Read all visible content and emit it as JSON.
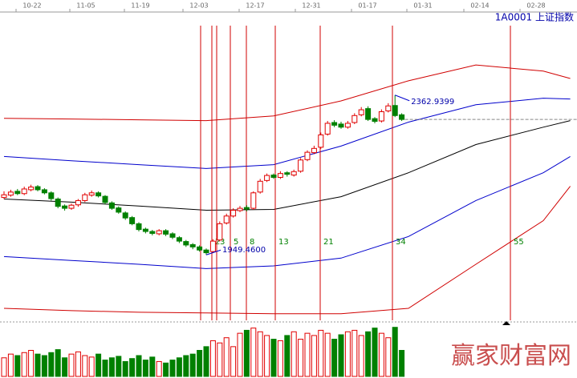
{
  "chart_data": {
    "type": "candlestick",
    "title": "1A0001 上证指数",
    "date_labels": [
      "10-22",
      "11-05",
      "11-19",
      "12-03",
      "12-17",
      "12-31",
      "01-17",
      "01-31",
      "02-14",
      "02-28"
    ],
    "ylim": [
      1780,
      2578
    ],
    "open": [
      2098,
      2104,
      2114,
      2108,
      2118,
      2126,
      2118,
      2110,
      2094,
      2076,
      2070,
      2079,
      2090,
      2104,
      2110,
      2101,
      2084,
      2071,
      2058,
      2046,
      2030,
      2016,
      2010,
      2004,
      2012,
      2004,
      1994,
      1984,
      1976,
      1970,
      1962,
      1958,
      1988,
      2032,
      2050,
      2064,
      2072,
      2070,
      2112,
      2142,
      2156,
      2150,
      2162,
      2156,
      2166,
      2196,
      2214,
      2228,
      2262,
      2292,
      2288,
      2280,
      2292,
      2312,
      2328,
      2302,
      2296,
      2322,
      2336,
      2312
    ],
    "high": [
      2114,
      2118,
      2120,
      2126,
      2131,
      2130,
      2122,
      2114,
      2098,
      2080,
      2082,
      2094,
      2110,
      2116,
      2114,
      2104,
      2088,
      2075,
      2062,
      2050,
      2034,
      2020,
      2014,
      2016,
      2016,
      2008,
      1998,
      1988,
      1980,
      1974,
      1966,
      1990,
      2036,
      2056,
      2070,
      2076,
      2078,
      2114,
      2146,
      2160,
      2160,
      2166,
      2166,
      2170,
      2200,
      2220,
      2232,
      2266,
      2296,
      2298,
      2294,
      2296,
      2316,
      2332,
      2334,
      2306,
      2326,
      2342,
      2362.9399,
      2316
    ],
    "low": [
      2094,
      2100,
      2104,
      2104,
      2114,
      2114,
      2106,
      2090,
      2070,
      2064,
      2066,
      2074,
      2086,
      2100,
      2098,
      2080,
      2066,
      2056,
      2040,
      2026,
      2010,
      2005,
      2000,
      2000,
      1998,
      1990,
      1980,
      1970,
      1964,
      1958,
      1949.46,
      1954,
      1984,
      2028,
      2046,
      2060,
      2062,
      2066,
      2108,
      2138,
      2146,
      2146,
      2152,
      2152,
      2162,
      2192,
      2210,
      2224,
      2258,
      2280,
      2276,
      2276,
      2288,
      2308,
      2296,
      2290,
      2292,
      2318,
      2306,
      2296
    ],
    "close": [
      2105,
      2112,
      2108,
      2120,
      2125,
      2118,
      2110,
      2095,
      2075,
      2070,
      2078,
      2090,
      2105,
      2110,
      2102,
      2085,
      2070,
      2060,
      2045,
      2030,
      2015,
      2010,
      2005,
      2012,
      2003,
      1995,
      1985,
      1975,
      1970,
      1962,
      1955,
      1985,
      2030,
      2050,
      2065,
      2070,
      2068,
      2110,
      2140,
      2155,
      2150,
      2160,
      2158,
      2165,
      2195,
      2215,
      2225,
      2260,
      2290,
      2285,
      2280,
      2290,
      2310,
      2325,
      2300,
      2295,
      2320,
      2335,
      2310,
      2300
    ],
    "volume": [
      25,
      30,
      28,
      32,
      35,
      30,
      28,
      32,
      36,
      25,
      30,
      33,
      28,
      26,
      30,
      22,
      25,
      27,
      20,
      24,
      28,
      22,
      26,
      20,
      18,
      22,
      25,
      28,
      30,
      35,
      40,
      48,
      45,
      52,
      40,
      58,
      62,
      65,
      60,
      55,
      50,
      48,
      55,
      60,
      50,
      58,
      55,
      62,
      58,
      50,
      56,
      60,
      62,
      55,
      60,
      65,
      58,
      52,
      66,
      35
    ],
    "volume_ylim": [
      0,
      70
    ],
    "band_x": [
      0,
      10,
      20,
      30,
      40,
      50,
      60,
      70,
      80,
      84
    ],
    "bands": [
      {
        "color": "#d00000",
        "values": [
          2303,
          2301,
          2299,
          2297,
          2309,
          2348,
          2400,
          2441,
          2425,
          2406
        ]
      },
      {
        "color": "#0000cc",
        "values": [
          2204,
          2193,
          2183,
          2173,
          2183,
          2231,
          2293,
          2338,
          2355,
          2353
        ]
      },
      {
        "color": "#000000",
        "values": [
          2094,
          2086,
          2076,
          2065,
          2067,
          2100,
          2162,
          2235,
          2280,
          2297
        ]
      },
      {
        "color": "#0000cc",
        "values": [
          1945,
          1935,
          1925,
          1914,
          1921,
          1941,
          1997,
          2090,
          2162,
          2204
        ]
      },
      {
        "color": "#d00000",
        "values": [
          1811,
          1805,
          1801,
          1799,
          1797,
          1797,
          1811,
          1925,
          2038,
          2127
        ]
      }
    ],
    "fib_labels": [
      null,
      "2",
      "3",
      "5",
      "8",
      "13",
      "21",
      "34",
      "55"
    ],
    "annotations": [
      "2362.9399",
      "1949.4600"
    ],
    "watermark": "赢家财富网"
  }
}
